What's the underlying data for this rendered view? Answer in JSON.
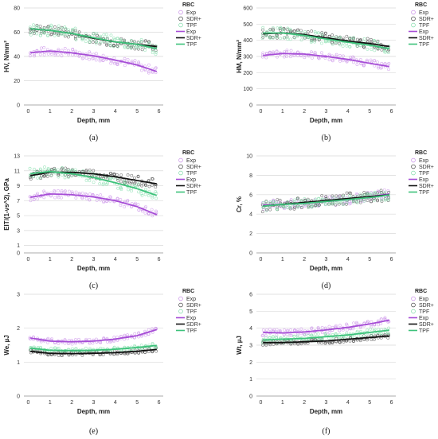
{
  "figure": {
    "legend_title": "RBC",
    "legend_items": [
      "Exp",
      "SDR+",
      "TPF",
      "Exp",
      "SDR+",
      "TPF"
    ],
    "colors": {
      "Exp": "#a64dd6",
      "SDR+": "#111111",
      "TPF": "#3cc27a"
    },
    "marker_colors": {
      "Exp": "#c98fe8",
      "SDR+": "#444444",
      "TPF": "#7fdca8"
    }
  },
  "chart_data": [
    {
      "type": "scatter",
      "caption": "(a)",
      "ylabel": "HV, N/mm²",
      "xlabel": "Depth, mm",
      "ylim": [
        0,
        80
      ],
      "yticks": [
        0,
        20,
        40,
        60,
        80
      ],
      "xlim": [
        -0.2,
        6.2
      ],
      "xticks": [
        0,
        1,
        2,
        3,
        4,
        5,
        6
      ],
      "grid": "horizontal",
      "legend": "right",
      "series": [
        {
          "name": "Exp",
          "x": [
            0,
            1,
            2,
            3,
            4,
            5,
            6
          ],
          "y": [
            43,
            44.5,
            43,
            40.5,
            37,
            33,
            27
          ],
          "spread": 3.5
        },
        {
          "name": "SDR+",
          "x": [
            0,
            1,
            2,
            3,
            4,
            5,
            6
          ],
          "y": [
            63,
            61.5,
            59,
            55,
            52,
            50,
            48
          ],
          "spread": 4
        },
        {
          "name": "TPF",
          "x": [
            0,
            1,
            2,
            3,
            4,
            5,
            6
          ],
          "y": [
            63,
            61.5,
            59,
            55.5,
            52,
            50,
            46
          ],
          "spread": 5
        }
      ]
    },
    {
      "type": "scatter",
      "caption": "(b)",
      "ylabel": "HM, N/mm²",
      "xlabel": "Depth, mm",
      "ylim": [
        0,
        600
      ],
      "yticks": [
        0,
        100,
        200,
        300,
        400,
        500,
        600
      ],
      "xlim": [
        -0.2,
        6.2
      ],
      "xticks": [
        0,
        1,
        2,
        3,
        4,
        5,
        6
      ],
      "grid": "horizontal",
      "legend": "right",
      "series": [
        {
          "name": "Exp",
          "x": [
            0,
            1,
            2,
            3,
            4,
            5,
            6
          ],
          "y": [
            305,
            318,
            315,
            300,
            282,
            258,
            235
          ],
          "spread": 22
        },
        {
          "name": "SDR+",
          "x": [
            0,
            1,
            2,
            3,
            4,
            5,
            6
          ],
          "y": [
            440,
            445,
            435,
            415,
            395,
            380,
            360
          ],
          "spread": 30
        },
        {
          "name": "TPF",
          "x": [
            0,
            1,
            2,
            3,
            4,
            5,
            6
          ],
          "y": [
            445,
            445,
            430,
            408,
            388,
            370,
            345
          ],
          "spread": 35
        }
      ]
    },
    {
      "type": "scatter",
      "caption": "(c)",
      "ylabel": "EIT/(1-νs^2), GPa",
      "xlabel": "Depth, mm",
      "ylim": [
        0,
        13
      ],
      "yticks": [
        0,
        1,
        3,
        5,
        7,
        9,
        11,
        13
      ],
      "xlim": [
        -0.2,
        6.2
      ],
      "xticks": [
        0,
        1,
        2,
        3,
        4,
        5,
        6
      ],
      "grid": "horizontal",
      "legend": "right",
      "series": [
        {
          "name": "Exp",
          "x": [
            0,
            1,
            2,
            3,
            4,
            5,
            6
          ],
          "y": [
            7.4,
            7.9,
            7.8,
            7.5,
            7.0,
            6.2,
            5.0
          ],
          "spread": 0.5
        },
        {
          "name": "SDR+",
          "x": [
            0,
            1,
            2,
            3,
            4,
            5,
            6
          ],
          "y": [
            10.3,
            10.8,
            10.8,
            10.6,
            10.2,
            9.7,
            9.2
          ],
          "spread": 0.6
        },
        {
          "name": "TPF",
          "x": [
            0,
            1,
            2,
            3,
            4,
            5,
            6
          ],
          "y": [
            10.6,
            10.9,
            10.6,
            10.1,
            9.4,
            8.6,
            7.6
          ],
          "spread": 0.7
        }
      ]
    },
    {
      "type": "scatter",
      "caption": "(d)",
      "ylabel": "Cr, %",
      "xlabel": "Depth, mm",
      "ylim": [
        0,
        10
      ],
      "yticks": [
        0,
        2,
        4,
        6,
        8,
        10
      ],
      "xlim": [
        -0.2,
        6.2
      ],
      "xticks": [
        0,
        1,
        2,
        3,
        4,
        5,
        6
      ],
      "grid": "horizontal",
      "legend": "right",
      "series": [
        {
          "name": "Exp",
          "x": [
            0,
            1,
            2,
            3,
            4,
            5,
            6
          ],
          "y": [
            4.9,
            5.0,
            5.1,
            5.3,
            5.5,
            5.8,
            6.1
          ],
          "spread": 0.5
        },
        {
          "name": "SDR+",
          "x": [
            0,
            1,
            2,
            3,
            4,
            5,
            6
          ],
          "y": [
            4.8,
            5.0,
            5.2,
            5.4,
            5.6,
            5.8,
            6.0
          ],
          "spread": 0.6
        },
        {
          "name": "TPF",
          "x": [
            0,
            1,
            2,
            3,
            4,
            5,
            6
          ],
          "y": [
            4.8,
            5.0,
            5.1,
            5.3,
            5.5,
            5.7,
            6.0
          ],
          "spread": 0.5
        }
      ]
    },
    {
      "type": "scatter",
      "caption": "(e)",
      "ylabel": "We, µJ",
      "xlabel": "Depth, mm",
      "ylim": [
        0,
        3
      ],
      "yticks": [
        0,
        1,
        2,
        3
      ],
      "xlim": [
        -0.2,
        6.2
      ],
      "xticks": [
        0,
        1,
        2,
        3,
        4,
        5,
        6
      ],
      "grid": "horizontal",
      "legend": "right",
      "series": [
        {
          "name": "Exp",
          "x": [
            0,
            1,
            2,
            3,
            4,
            5,
            6
          ],
          "y": [
            1.72,
            1.62,
            1.6,
            1.62,
            1.68,
            1.78,
            1.98
          ],
          "spread": 0.07
        },
        {
          "name": "SDR+",
          "x": [
            0,
            1,
            2,
            3,
            4,
            5,
            6
          ],
          "y": [
            1.32,
            1.26,
            1.25,
            1.26,
            1.28,
            1.32,
            1.38
          ],
          "spread": 0.06
        },
        {
          "name": "TPF",
          "x": [
            0,
            1,
            2,
            3,
            4,
            5,
            6
          ],
          "y": [
            1.42,
            1.35,
            1.34,
            1.35,
            1.38,
            1.43,
            1.5
          ],
          "spread": 0.07
        }
      ]
    },
    {
      "type": "scatter",
      "caption": "(f)",
      "ylabel": "Wt, µJ",
      "xlabel": "Depth, mm",
      "ylim": [
        0,
        6
      ],
      "yticks": [
        0,
        1,
        2,
        3,
        4,
        5,
        6
      ],
      "xlim": [
        -0.2,
        6.2
      ],
      "xticks": [
        0,
        1,
        2,
        3,
        4,
        5,
        6
      ],
      "grid": "horizontal",
      "legend": "right",
      "series": [
        {
          "name": "Exp",
          "x": [
            0,
            1,
            2,
            3,
            4,
            5,
            6
          ],
          "y": [
            3.75,
            3.72,
            3.78,
            3.9,
            4.05,
            4.25,
            4.5
          ],
          "spread": 0.2
        },
        {
          "name": "SDR+",
          "x": [
            0,
            1,
            2,
            3,
            4,
            5,
            6
          ],
          "y": [
            3.15,
            3.15,
            3.2,
            3.25,
            3.35,
            3.45,
            3.55
          ],
          "spread": 0.15
        },
        {
          "name": "TPF",
          "x": [
            0,
            1,
            2,
            3,
            4,
            5,
            6
          ],
          "y": [
            3.3,
            3.35,
            3.4,
            3.5,
            3.6,
            3.75,
            3.9
          ],
          "spread": 0.2
        }
      ]
    }
  ]
}
